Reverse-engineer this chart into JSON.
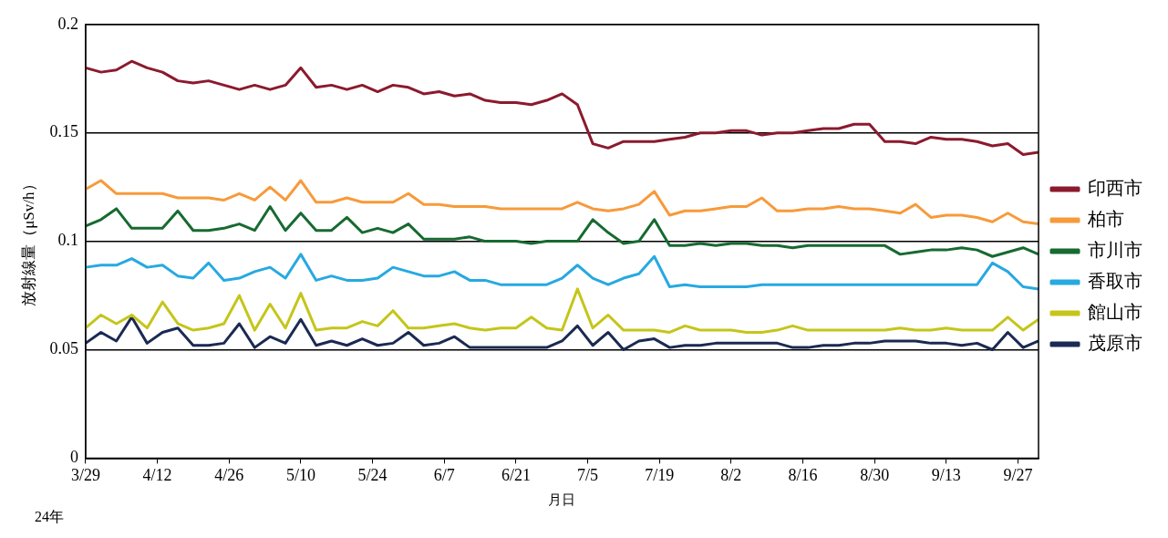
{
  "chart_data": {
    "type": "line",
    "ylabel": "放射線量（μSv/h）",
    "xlabel": "月日",
    "annotations": [
      "24年"
    ],
    "x": [
      "--03-29",
      "--04-01",
      "--04-04",
      "--04-07",
      "--04-10",
      "--04-13",
      "--04-16",
      "--04-19",
      "--04-22",
      "--04-25",
      "--04-28",
      "--05-01",
      "--05-04",
      "--05-07",
      "--05-10",
      "--05-13",
      "--05-16",
      "--05-19",
      "--05-22",
      "--05-25",
      "--05-28",
      "--05-31",
      "--06-03",
      "--06-06",
      "--06-09",
      "--06-12",
      "--06-15",
      "--06-18",
      "--06-21",
      "--06-24",
      "--06-27",
      "--06-30",
      "--07-03",
      "--07-06",
      "--07-09",
      "--07-12",
      "--07-15",
      "--07-18",
      "--07-21",
      "--07-24",
      "--07-27",
      "--07-30",
      "--08-02",
      "--08-05",
      "--08-08",
      "--08-11",
      "--08-14",
      "--08-17",
      "--08-20",
      "--08-23",
      "--08-26",
      "--08-29",
      "--09-01",
      "--09-04",
      "--09-07",
      "--09-10",
      "--09-13",
      "--09-16",
      "--09-19",
      "--09-22",
      "--09-25",
      "--09-28",
      "--10-01"
    ],
    "xlim": [
      "--03-29",
      "--10-01"
    ],
    "xticks": [
      {
        "value": "--03-29",
        "label": "3/29"
      },
      {
        "value": "--04-12",
        "label": "4/12"
      },
      {
        "value": "--04-26",
        "label": "4/26"
      },
      {
        "value": "--05-10",
        "label": "5/10"
      },
      {
        "value": "--05-24",
        "label": "5/24"
      },
      {
        "value": "--06-07",
        "label": "6/7"
      },
      {
        "value": "--06-21",
        "label": "6/21"
      },
      {
        "value": "--07-05",
        "label": "7/5"
      },
      {
        "value": "--07-19",
        "label": "7/19"
      },
      {
        "value": "--08-02",
        "label": "8/2"
      },
      {
        "value": "--08-16",
        "label": "8/16"
      },
      {
        "value": "--08-30",
        "label": "8/30"
      },
      {
        "value": "--09-13",
        "label": "9/13"
      },
      {
        "value": "--09-27",
        "label": "9/27"
      }
    ],
    "ylim": [
      0,
      0.2
    ],
    "yticks": [
      0,
      0.05,
      0.1,
      0.15,
      0.2
    ],
    "grid": "y",
    "legend": "right",
    "marker": "none",
    "line_style": "solid",
    "series": [
      {
        "name": "印西市",
        "color": "#8b1a2e",
        "values": [
          0.18,
          0.178,
          0.179,
          0.183,
          0.18,
          0.178,
          0.174,
          0.173,
          0.174,
          0.172,
          0.17,
          0.172,
          0.17,
          0.172,
          0.18,
          0.171,
          0.172,
          0.17,
          0.172,
          0.169,
          0.172,
          0.171,
          0.168,
          0.169,
          0.167,
          0.168,
          0.165,
          0.164,
          0.164,
          0.163,
          0.165,
          0.168,
          0.163,
          0.145,
          0.143,
          0.146,
          0.146,
          0.146,
          0.147,
          0.148,
          0.15,
          0.15,
          0.151,
          0.151,
          0.149,
          0.15,
          0.15,
          0.151,
          0.152,
          0.152,
          0.154,
          0.154,
          0.146,
          0.146,
          0.145,
          0.148,
          0.147,
          0.147,
          0.146,
          0.144,
          0.145,
          0.14,
          0.141
        ]
      },
      {
        "name": "柏市",
        "color": "#f79a3a",
        "values": [
          0.124,
          0.128,
          0.122,
          0.122,
          0.122,
          0.122,
          0.12,
          0.12,
          0.12,
          0.119,
          0.122,
          0.119,
          0.125,
          0.119,
          0.128,
          0.118,
          0.118,
          0.12,
          0.118,
          0.118,
          0.118,
          0.122,
          0.117,
          0.117,
          0.116,
          0.116,
          0.116,
          0.115,
          0.115,
          0.115,
          0.115,
          0.115,
          0.118,
          0.115,
          0.114,
          0.115,
          0.117,
          0.123,
          0.112,
          0.114,
          0.114,
          0.115,
          0.116,
          0.116,
          0.12,
          0.114,
          0.114,
          0.115,
          0.115,
          0.116,
          0.115,
          0.115,
          0.114,
          0.113,
          0.117,
          0.111,
          0.112,
          0.112,
          0.111,
          0.109,
          0.113,
          0.109,
          0.108
        ]
      },
      {
        "name": "市川市",
        "color": "#176a30",
        "values": [
          0.107,
          0.11,
          0.115,
          0.106,
          0.106,
          0.106,
          0.114,
          0.105,
          0.105,
          0.106,
          0.108,
          0.105,
          0.116,
          0.105,
          0.113,
          0.105,
          0.105,
          0.111,
          0.104,
          0.106,
          0.104,
          0.108,
          0.101,
          0.101,
          0.101,
          0.102,
          0.1,
          0.1,
          0.1,
          0.099,
          0.1,
          0.1,
          0.1,
          0.11,
          0.104,
          0.099,
          0.1,
          0.11,
          0.098,
          0.098,
          0.099,
          0.098,
          0.099,
          0.099,
          0.098,
          0.098,
          0.097,
          0.098,
          0.098,
          0.098,
          0.098,
          0.098,
          0.098,
          0.094,
          0.095,
          0.096,
          0.096,
          0.097,
          0.096,
          0.093,
          0.095,
          0.097,
          0.094
        ]
      },
      {
        "name": "香取市",
        "color": "#27a9e1",
        "values": [
          0.088,
          0.089,
          0.089,
          0.092,
          0.088,
          0.089,
          0.084,
          0.083,
          0.09,
          0.082,
          0.083,
          0.086,
          0.088,
          0.083,
          0.094,
          0.082,
          0.084,
          0.082,
          0.082,
          0.083,
          0.088,
          0.086,
          0.084,
          0.084,
          0.086,
          0.082,
          0.082,
          0.08,
          0.08,
          0.08,
          0.08,
          0.083,
          0.089,
          0.083,
          0.08,
          0.083,
          0.085,
          0.093,
          0.079,
          0.08,
          0.079,
          0.079,
          0.079,
          0.079,
          0.08,
          0.08,
          0.08,
          0.08,
          0.08,
          0.08,
          0.08,
          0.08,
          0.08,
          0.08,
          0.08,
          0.08,
          0.08,
          0.08,
          0.08,
          0.09,
          0.086,
          0.079,
          0.078
        ]
      },
      {
        "name": "館山市",
        "color": "#c5c51a",
        "values": [
          0.06,
          0.066,
          0.062,
          0.066,
          0.06,
          0.072,
          0.062,
          0.059,
          0.06,
          0.062,
          0.075,
          0.059,
          0.071,
          0.06,
          0.076,
          0.059,
          0.06,
          0.06,
          0.063,
          0.061,
          0.068,
          0.06,
          0.06,
          0.061,
          0.062,
          0.06,
          0.059,
          0.06,
          0.06,
          0.065,
          0.06,
          0.059,
          0.078,
          0.06,
          0.066,
          0.059,
          0.059,
          0.059,
          0.058,
          0.061,
          0.059,
          0.059,
          0.059,
          0.058,
          0.058,
          0.059,
          0.061,
          0.059,
          0.059,
          0.059,
          0.059,
          0.059,
          0.059,
          0.06,
          0.059,
          0.059,
          0.06,
          0.059,
          0.059,
          0.059,
          0.065,
          0.059,
          0.064
        ]
      },
      {
        "name": "茂原市",
        "color": "#1b2a52",
        "values": [
          0.053,
          0.058,
          0.054,
          0.065,
          0.053,
          0.058,
          0.06,
          0.052,
          0.052,
          0.053,
          0.062,
          0.051,
          0.056,
          0.053,
          0.064,
          0.052,
          0.054,
          0.052,
          0.055,
          0.052,
          0.053,
          0.058,
          0.052,
          0.053,
          0.056,
          0.051,
          0.051,
          0.051,
          0.051,
          0.051,
          0.051,
          0.054,
          0.061,
          0.052,
          0.058,
          0.05,
          0.054,
          0.055,
          0.051,
          0.052,
          0.052,
          0.053,
          0.053,
          0.053,
          0.053,
          0.053,
          0.051,
          0.051,
          0.052,
          0.052,
          0.053,
          0.053,
          0.054,
          0.054,
          0.054,
          0.053,
          0.053,
          0.052,
          0.053,
          0.05,
          0.058,
          0.051,
          0.054
        ]
      }
    ]
  }
}
